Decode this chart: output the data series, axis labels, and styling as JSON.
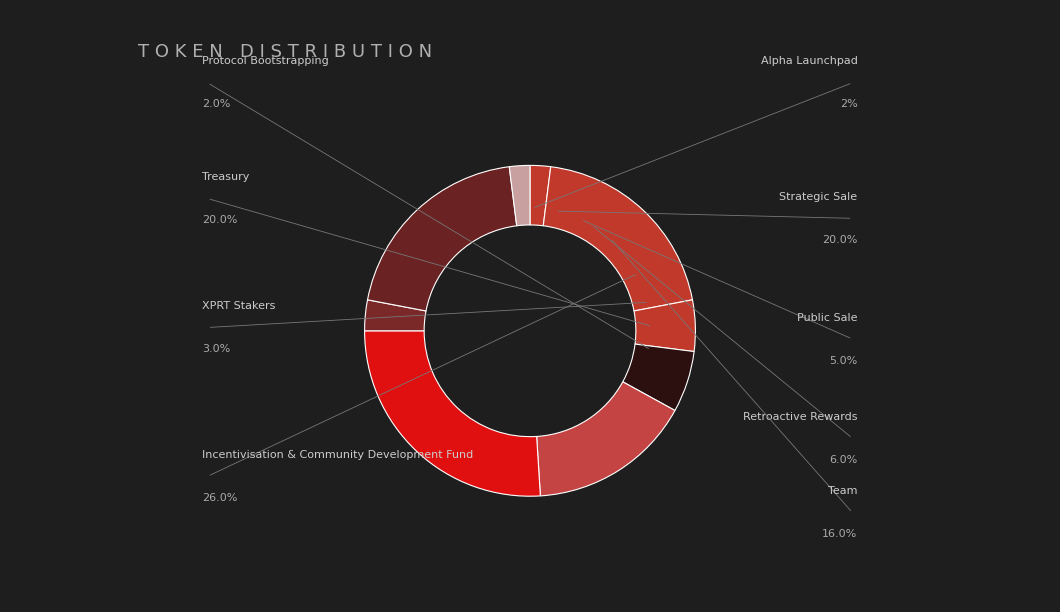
{
  "title": "T O K E N   D I S T R I B U T I O N",
  "background_color": "#1e1e1e",
  "slices": [
    {
      "label": "Alpha Launchpad",
      "pct_label": "2%",
      "value": 2,
      "color": "#c0392b"
    },
    {
      "label": "Strategic Sale",
      "pct_label": "20.0%",
      "value": 20,
      "color": "#c0392b"
    },
    {
      "label": "Public Sale",
      "pct_label": "5.0%",
      "value": 5,
      "color": "#c0392b"
    },
    {
      "label": "Retroactive Rewards",
      "pct_label": "6.0%",
      "value": 6,
      "color": "#2c1010"
    },
    {
      "label": "Team",
      "pct_label": "16.0%",
      "value": 16,
      "color": "#c44444"
    },
    {
      "label": "Incentivisation & Community Development Fund",
      "pct_label": "26.0%",
      "value": 26,
      "color": "#e01010"
    },
    {
      "label": "XPRT Stakers",
      "pct_label": "3.0%",
      "value": 3,
      "color": "#7a2828"
    },
    {
      "label": "Treasury",
      "pct_label": "20.0%",
      "value": 20,
      "color": "#6b2222"
    },
    {
      "label": "Protocol Bootstrapping",
      "pct_label": "2.0%",
      "value": 2,
      "color": "#c8a0a0"
    }
  ],
  "title_color": "#b0b0b0",
  "label_color": "#cccccc",
  "pct_color": "#aaaaaa",
  "line_color": "#777777",
  "wedge_linewidth": 0.8,
  "wedge_linecolor": "#ffffff"
}
